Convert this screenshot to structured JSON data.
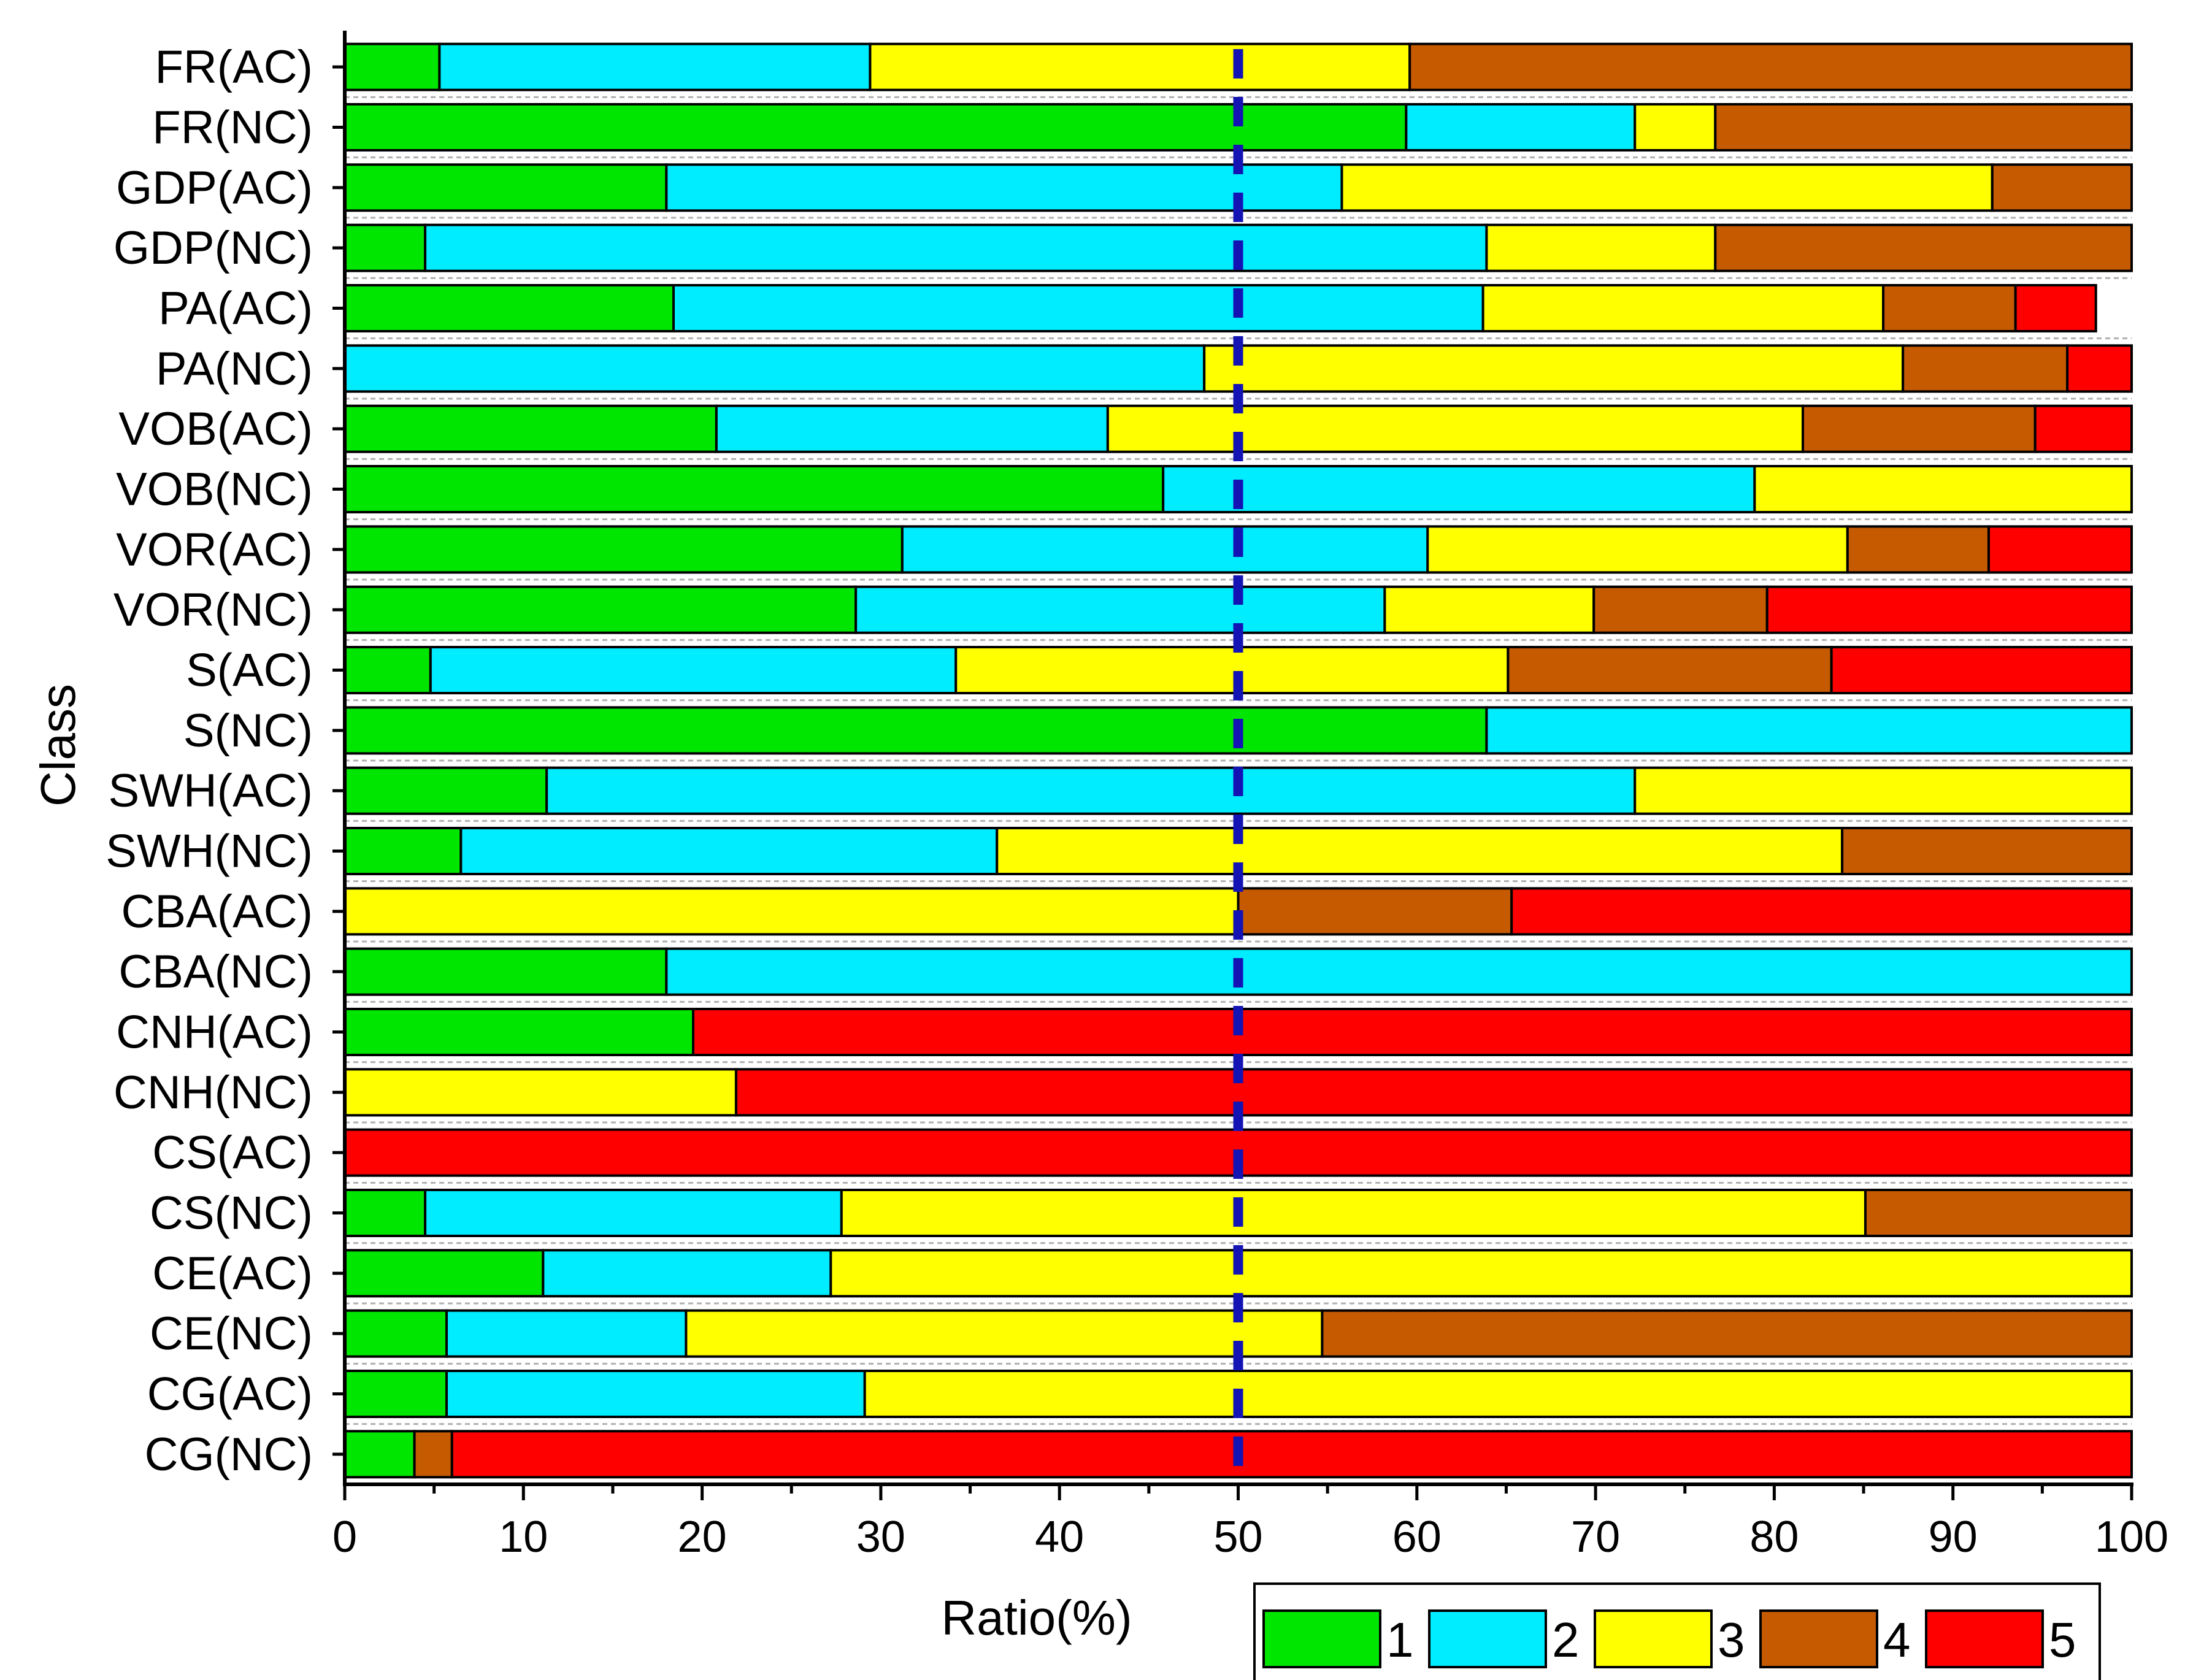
{
  "chart_data": {
    "type": "bar",
    "orientation": "horizontal",
    "stacked": true,
    "xlabel": "Ratio(%)",
    "ylabel": "Class",
    "xlim": [
      0,
      100
    ],
    "x_ticks": [
      "0",
      "10",
      "20",
      "30",
      "40",
      "50",
      "60",
      "70",
      "80",
      "90",
      "100"
    ],
    "reference_line": {
      "x": 50,
      "style": "dashed",
      "color": "#1414b4"
    },
    "legend_position": "bottom-right",
    "categories": [
      "FR(AC)",
      "FR(NC)",
      "GDP(AC)",
      "GDP(NC)",
      "PA(AC)",
      "PA(NC)",
      "VOB(AC)",
      "VOB(NC)",
      "VOR(AC)",
      "VOR(NC)",
      "S(AC)",
      "S(NC)",
      "SWH(AC)",
      "SWH(NC)",
      "CBA(AC)",
      "CBA(NC)",
      "CNH(AC)",
      "CNH(NC)",
      "CS(AC)",
      "CS(NC)",
      "CE(AC)",
      "CE(NC)",
      "CG(AC)",
      "CG(NC)"
    ],
    "series": [
      {
        "name": "1",
        "color": "#00e600",
        "values": [
          5.3,
          59.4,
          18.0,
          4.5,
          18.4,
          0,
          20.8,
          45.8,
          31.2,
          28.6,
          4.8,
          63.9,
          11.3,
          6.5,
          0,
          18.0,
          19.5,
          0,
          0,
          4.5,
          11.1,
          5.7,
          5.7,
          3.9
        ]
      },
      {
        "name": "2",
        "color": "#00ecff",
        "values": [
          24.1,
          12.8,
          37.8,
          59.4,
          45.3,
          48.1,
          21.9,
          33.1,
          29.4,
          29.6,
          29.4,
          36.1,
          60.9,
          30.0,
          0,
          82.0,
          0,
          0,
          0,
          23.3,
          16.1,
          13.4,
          23.4,
          0
        ]
      },
      {
        "name": "3",
        "color": "#ffff00",
        "values": [
          30.2,
          4.5,
          36.4,
          12.8,
          22.4,
          39.1,
          38.9,
          21.1,
          23.5,
          11.7,
          30.9,
          0,
          27.8,
          47.3,
          50.0,
          0,
          0,
          21.9,
          0,
          57.3,
          72.8,
          35.6,
          70.9,
          0
        ]
      },
      {
        "name": "4",
        "color": "#c55a00",
        "values": [
          40.4,
          23.3,
          7.8,
          23.3,
          7.4,
          9.2,
          13.0,
          0,
          7.9,
          9.7,
          18.1,
          0,
          0,
          16.2,
          15.3,
          0,
          0,
          0,
          0,
          14.9,
          0,
          45.3,
          0,
          2.1
        ]
      },
      {
        "name": "5",
        "color": "#ff0000",
        "values": [
          0,
          0,
          0,
          0,
          4.5,
          3.6,
          5.4,
          0,
          8.0,
          20.4,
          16.8,
          0,
          0,
          0,
          34.7,
          0,
          80.5,
          78.1,
          100,
          0,
          0,
          0,
          0,
          94.0
        ]
      }
    ]
  }
}
